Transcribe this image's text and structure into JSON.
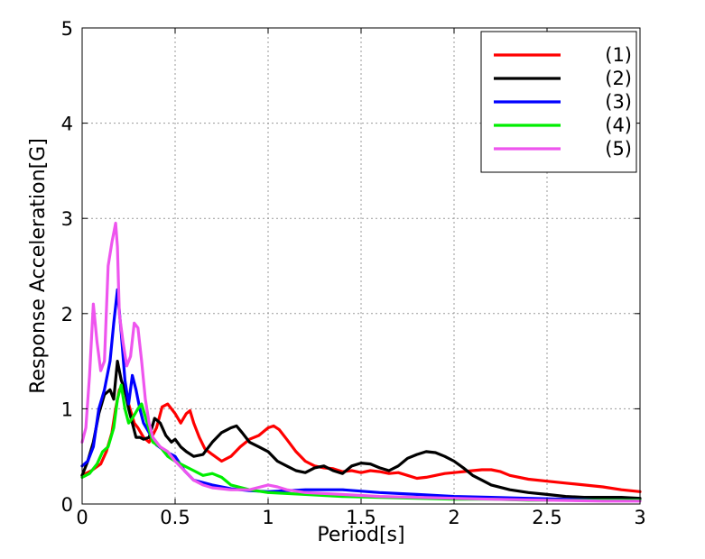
{
  "chart_data": {
    "type": "line",
    "title": "",
    "xlabel": "Period[s]",
    "ylabel": "Response Acceleration[G]",
    "xlim": [
      0,
      3
    ],
    "ylim": [
      0,
      5
    ],
    "xticks": [
      0,
      0.5,
      1,
      1.5,
      2,
      2.5,
      3
    ],
    "xtick_labels": [
      "0",
      "0.5",
      "1",
      "1.5",
      "2",
      "2.5",
      "3"
    ],
    "yticks": [
      0,
      1,
      2,
      3,
      4,
      5
    ],
    "ytick_labels": [
      "0",
      "1",
      "2",
      "3",
      "4",
      "5"
    ],
    "grid": true,
    "legend_position": "top-right",
    "series": [
      {
        "name": "(1)",
        "color": "#ff0000",
        "x": [
          0,
          0.05,
          0.1,
          0.13,
          0.16,
          0.18,
          0.2,
          0.22,
          0.25,
          0.28,
          0.3,
          0.33,
          0.36,
          0.4,
          0.43,
          0.46,
          0.5,
          0.53,
          0.56,
          0.58,
          0.6,
          0.63,
          0.66,
          0.7,
          0.75,
          0.8,
          0.85,
          0.9,
          0.95,
          1.0,
          1.03,
          1.06,
          1.1,
          1.15,
          1.2,
          1.25,
          1.3,
          1.35,
          1.4,
          1.45,
          1.5,
          1.55,
          1.6,
          1.65,
          1.7,
          1.75,
          1.8,
          1.85,
          1.9,
          1.95,
          2.0,
          2.05,
          2.1,
          2.15,
          2.2,
          2.25,
          2.3,
          2.4,
          2.5,
          2.6,
          2.7,
          2.8,
          2.9,
          3.0
        ],
        "y": [
          0.3,
          0.35,
          0.42,
          0.55,
          0.75,
          1.0,
          1.2,
          1.25,
          1.05,
          0.85,
          0.8,
          0.7,
          0.65,
          0.8,
          1.02,
          1.05,
          0.95,
          0.85,
          0.95,
          0.98,
          0.85,
          0.7,
          0.58,
          0.52,
          0.45,
          0.5,
          0.6,
          0.68,
          0.72,
          0.8,
          0.82,
          0.78,
          0.68,
          0.55,
          0.45,
          0.4,
          0.38,
          0.37,
          0.34,
          0.35,
          0.33,
          0.35,
          0.34,
          0.32,
          0.33,
          0.3,
          0.27,
          0.28,
          0.3,
          0.32,
          0.33,
          0.34,
          0.35,
          0.36,
          0.36,
          0.34,
          0.3,
          0.26,
          0.24,
          0.22,
          0.2,
          0.18,
          0.15,
          0.13
        ]
      },
      {
        "name": "(2)",
        "color": "#000000",
        "x": [
          0,
          0.03,
          0.06,
          0.09,
          0.12,
          0.15,
          0.17,
          0.19,
          0.21,
          0.23,
          0.25,
          0.27,
          0.29,
          0.31,
          0.33,
          0.36,
          0.39,
          0.42,
          0.45,
          0.48,
          0.5,
          0.53,
          0.56,
          0.6,
          0.65,
          0.7,
          0.75,
          0.8,
          0.83,
          0.86,
          0.9,
          0.95,
          1.0,
          1.05,
          1.1,
          1.15,
          1.2,
          1.25,
          1.3,
          1.35,
          1.4,
          1.45,
          1.5,
          1.55,
          1.6,
          1.65,
          1.7,
          1.75,
          1.8,
          1.85,
          1.9,
          1.95,
          2.0,
          2.05,
          2.1,
          2.15,
          2.2,
          2.3,
          2.4,
          2.5,
          2.6,
          2.7,
          2.8,
          2.9,
          3.0
        ],
        "y": [
          0.3,
          0.45,
          0.65,
          0.95,
          1.15,
          1.2,
          1.1,
          1.5,
          1.3,
          1.2,
          1.0,
          0.85,
          0.7,
          0.7,
          0.68,
          0.7,
          0.9,
          0.85,
          0.72,
          0.65,
          0.68,
          0.6,
          0.55,
          0.5,
          0.52,
          0.65,
          0.75,
          0.8,
          0.82,
          0.75,
          0.65,
          0.6,
          0.55,
          0.45,
          0.4,
          0.35,
          0.33,
          0.38,
          0.4,
          0.35,
          0.32,
          0.4,
          0.43,
          0.42,
          0.38,
          0.35,
          0.4,
          0.48,
          0.52,
          0.55,
          0.54,
          0.5,
          0.45,
          0.38,
          0.3,
          0.25,
          0.2,
          0.15,
          0.12,
          0.1,
          0.08,
          0.07,
          0.07,
          0.07,
          0.06
        ]
      },
      {
        "name": "(3)",
        "color": "#0000ff",
        "x": [
          0,
          0.03,
          0.06,
          0.09,
          0.12,
          0.15,
          0.17,
          0.19,
          0.21,
          0.23,
          0.25,
          0.27,
          0.29,
          0.31,
          0.33,
          0.36,
          0.4,
          0.45,
          0.5,
          0.55,
          0.6,
          0.7,
          0.8,
          0.9,
          1.0,
          1.2,
          1.4,
          1.6,
          1.8,
          2.0,
          2.2,
          2.4,
          2.6,
          2.8,
          3.0
        ],
        "y": [
          0.4,
          0.45,
          0.6,
          1.0,
          1.2,
          1.5,
          1.9,
          2.25,
          1.8,
          1.3,
          1.05,
          1.35,
          1.2,
          1.0,
          0.85,
          0.75,
          0.62,
          0.55,
          0.5,
          0.35,
          0.25,
          0.2,
          0.16,
          0.14,
          0.13,
          0.15,
          0.15,
          0.12,
          0.1,
          0.08,
          0.07,
          0.06,
          0.05,
          0.04,
          0.04
        ]
      },
      {
        "name": "(4)",
        "color": "#00ee00",
        "x": [
          0,
          0.04,
          0.08,
          0.11,
          0.14,
          0.17,
          0.19,
          0.21,
          0.23,
          0.25,
          0.27,
          0.3,
          0.32,
          0.35,
          0.38,
          0.42,
          0.46,
          0.5,
          0.55,
          0.6,
          0.65,
          0.7,
          0.75,
          0.8,
          0.9,
          1.0,
          1.2,
          1.4,
          1.6,
          1.8,
          2.0,
          2.2,
          2.4,
          2.6,
          2.8,
          3.0
        ],
        "y": [
          0.28,
          0.32,
          0.42,
          0.55,
          0.6,
          0.8,
          1.1,
          1.25,
          1.0,
          0.85,
          0.9,
          1.0,
          1.05,
          0.85,
          0.65,
          0.6,
          0.5,
          0.45,
          0.4,
          0.35,
          0.3,
          0.32,
          0.28,
          0.2,
          0.15,
          0.12,
          0.1,
          0.08,
          0.07,
          0.06,
          0.05,
          0.05,
          0.04,
          0.04,
          0.04,
          0.04
        ]
      },
      {
        "name": "(5)",
        "color": "#ee55ee",
        "x": [
          0,
          0.02,
          0.04,
          0.06,
          0.08,
          0.1,
          0.12,
          0.14,
          0.16,
          0.18,
          0.19,
          0.2,
          0.22,
          0.24,
          0.26,
          0.28,
          0.3,
          0.32,
          0.34,
          0.36,
          0.38,
          0.42,
          0.46,
          0.5,
          0.55,
          0.6,
          0.65,
          0.7,
          0.8,
          0.9,
          1.0,
          1.05,
          1.1,
          1.2,
          1.4,
          1.6,
          1.8,
          2.0,
          2.2,
          2.5,
          2.8,
          3.0
        ],
        "y": [
          0.65,
          0.8,
          1.35,
          2.1,
          1.7,
          1.4,
          1.5,
          2.5,
          2.75,
          2.95,
          2.7,
          2.0,
          1.7,
          1.45,
          1.55,
          1.9,
          1.85,
          1.5,
          1.1,
          0.85,
          0.7,
          0.6,
          0.55,
          0.45,
          0.35,
          0.25,
          0.2,
          0.17,
          0.15,
          0.15,
          0.2,
          0.18,
          0.15,
          0.12,
          0.1,
          0.08,
          0.07,
          0.06,
          0.05,
          0.04,
          0.03,
          0.03
        ]
      }
    ]
  }
}
